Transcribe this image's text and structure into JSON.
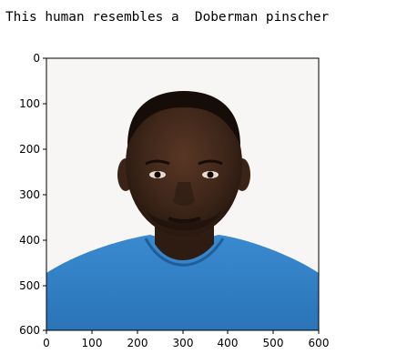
{
  "output": {
    "text": "This human resembles a  Doberman pinscher"
  },
  "axes": {
    "x_ticks": [
      "0",
      "100",
      "200",
      "300",
      "400",
      "500",
      "600"
    ],
    "y_ticks": [
      "0",
      "100",
      "200",
      "300",
      "400",
      "500",
      "600"
    ]
  },
  "image": {
    "subject": "photo of a man in a blue shirt against a white background",
    "background_color": "#f8f6f4",
    "shirt_color": "#2f7fc4",
    "skin_color": "#3a2418"
  }
}
